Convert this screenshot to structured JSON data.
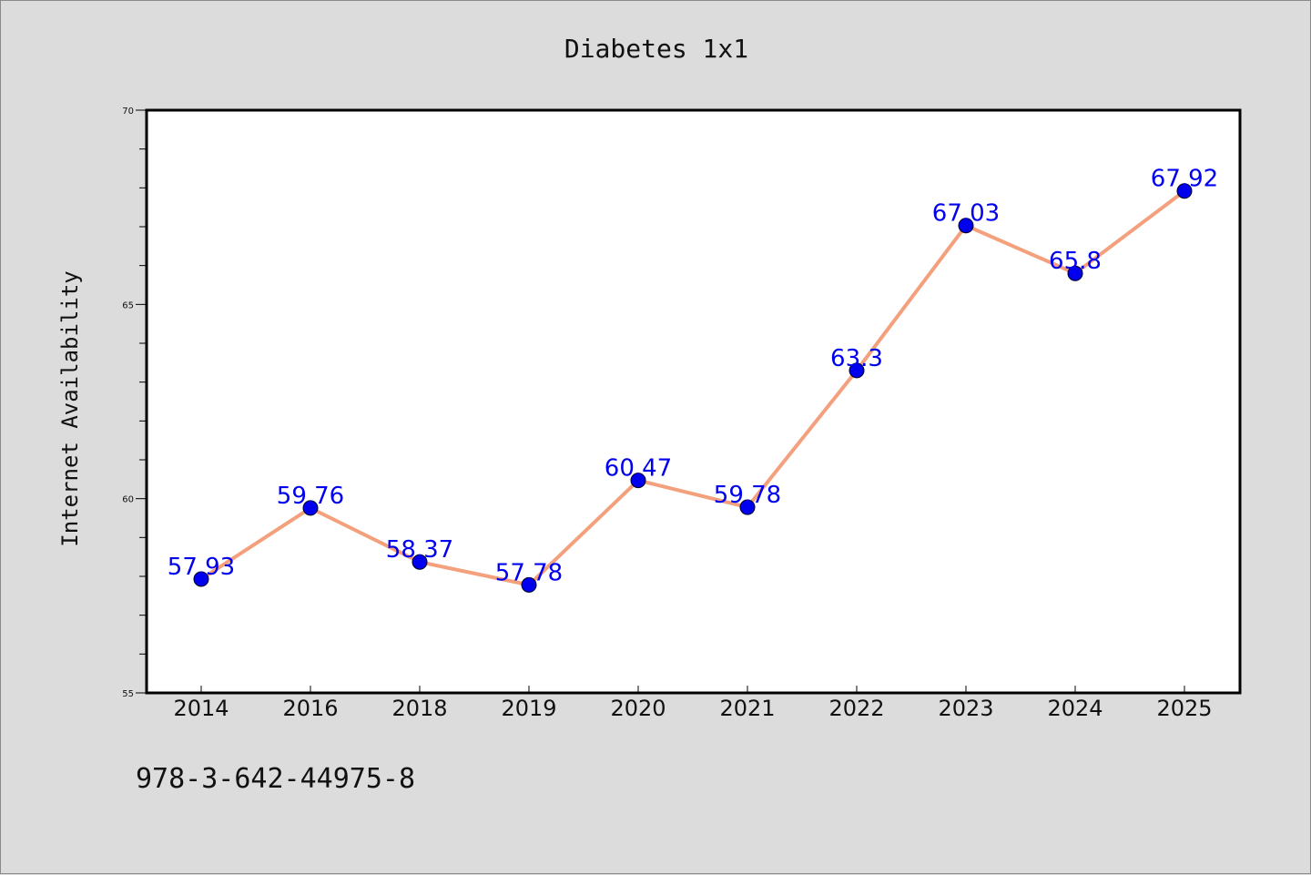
{
  "chart_data": {
    "type": "line",
    "title": "Diabetes 1x1",
    "xlabel": "",
    "ylabel": "Internet Availability",
    "categories": [
      "2014",
      "2016",
      "2018",
      "2019",
      "2020",
      "2021",
      "2022",
      "2023",
      "2024",
      "2025"
    ],
    "series": [
      {
        "values": [
          57.93,
          59.76,
          58.37,
          57.78,
          60.47,
          59.78,
          63.3,
          67.03,
          65.8,
          67.92
        ],
        "data_labels": [
          "57.93",
          "59.76",
          "58.37",
          "57.78",
          "60.47",
          "59.78",
          "63.3",
          "67.03",
          "65.8",
          "67.92"
        ],
        "line_color": "#f4a07c",
        "marker_color": "#0000ee"
      }
    ],
    "ylim": [
      55,
      70
    ],
    "yticks": [
      "55",
      "60",
      "65",
      "70"
    ],
    "grid": false,
    "legend": "none"
  },
  "footer": {
    "text": "978-3-642-44975-8"
  },
  "colors": {
    "background": "#dcdcdc",
    "plot_area": "#ffffff",
    "label": "#0000ee",
    "line": "#f4a07c"
  }
}
